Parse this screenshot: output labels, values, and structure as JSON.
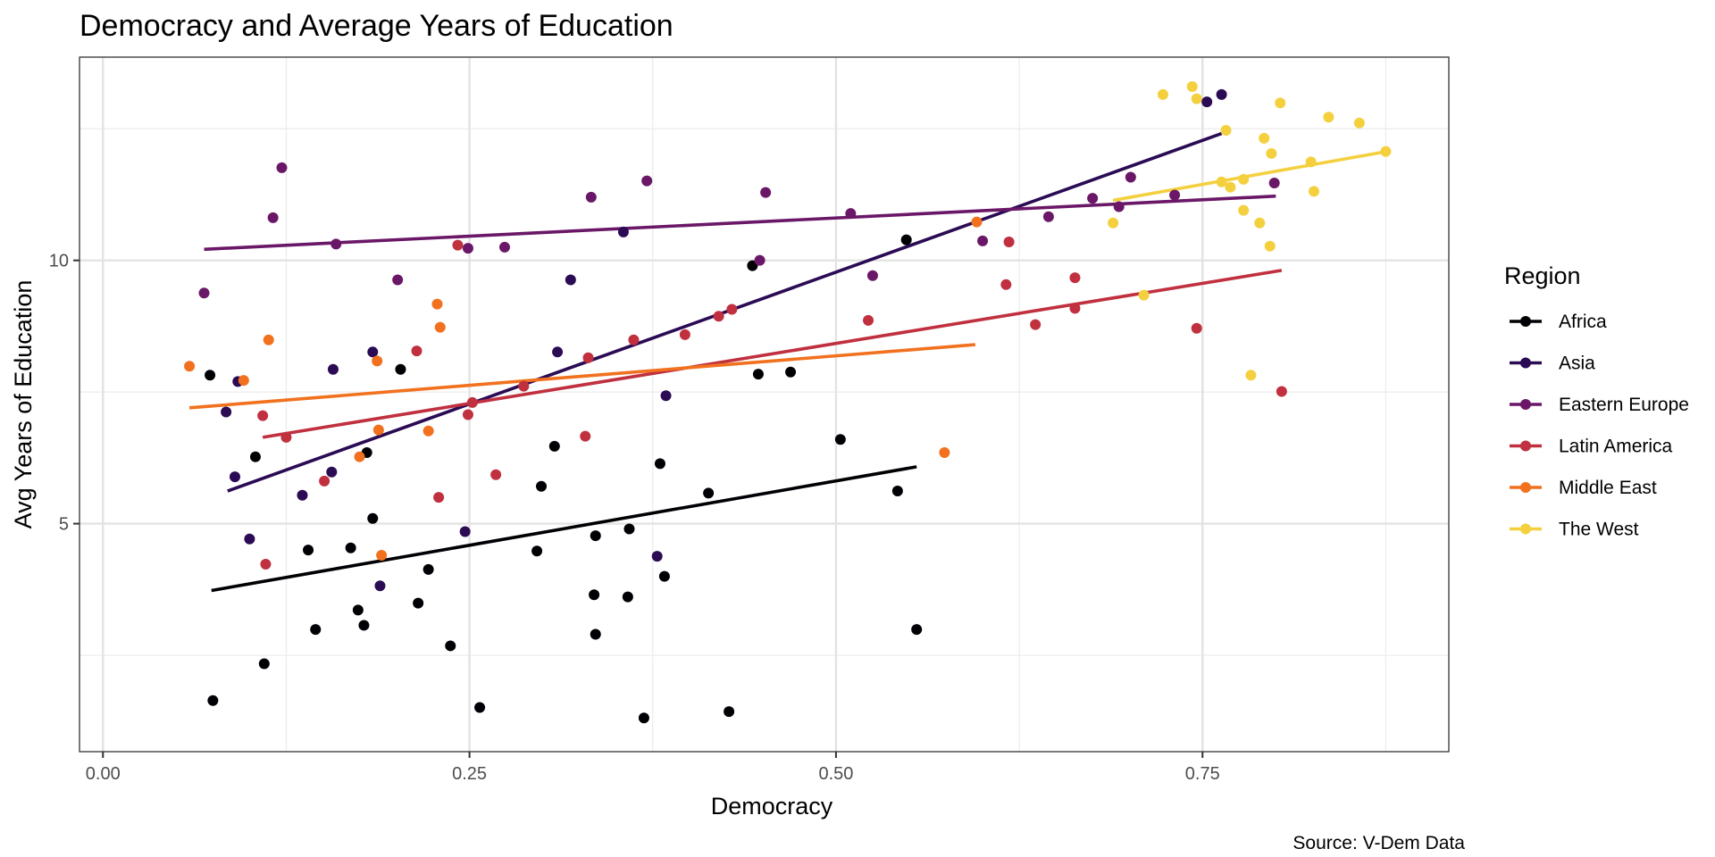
{
  "chart_data": {
    "type": "scatter",
    "title": "Democracy and Average Years of Education",
    "xlabel": "Democracy",
    "ylabel": "Avg Years of Education",
    "caption": "Source: V-Dem Data",
    "xlim": [
      -0.016,
      0.918
    ],
    "ylim": [
      0.67,
      13.86
    ],
    "x_ticks": [
      {
        "value": 0.0,
        "label": "0.00"
      },
      {
        "value": 0.25,
        "label": "0.25"
      },
      {
        "value": 0.5,
        "label": "0.50"
      },
      {
        "value": 0.75,
        "label": "0.75"
      }
    ],
    "x_minor": [
      0.125,
      0.375,
      0.625,
      0.875
    ],
    "y_ticks": [
      {
        "value": 5,
        "label": "5"
      },
      {
        "value": 10,
        "label": "10"
      }
    ],
    "y_minor": [
      2.5,
      7.5,
      12.5
    ],
    "grid": true,
    "legend": {
      "title": "Region",
      "position": "right"
    },
    "series": [
      {
        "name": "Africa",
        "color": "#000004",
        "points": [
          [
            0.073,
            7.82
          ],
          [
            0.075,
            1.64
          ],
          [
            0.104,
            6.27
          ],
          [
            0.11,
            2.34
          ],
          [
            0.14,
            4.5
          ],
          [
            0.145,
            2.99
          ],
          [
            0.169,
            4.54
          ],
          [
            0.174,
            3.36
          ],
          [
            0.178,
            3.07
          ],
          [
            0.18,
            6.35
          ],
          [
            0.184,
            5.1
          ],
          [
            0.203,
            7.93
          ],
          [
            0.215,
            3.49
          ],
          [
            0.222,
            4.13
          ],
          [
            0.237,
            2.68
          ],
          [
            0.257,
            1.51
          ],
          [
            0.296,
            4.48
          ],
          [
            0.299,
            5.71
          ],
          [
            0.308,
            6.47
          ],
          [
            0.335,
            3.65
          ],
          [
            0.336,
            2.9
          ],
          [
            0.336,
            4.77
          ],
          [
            0.358,
            3.61
          ],
          [
            0.359,
            4.9
          ],
          [
            0.369,
            1.31
          ],
          [
            0.38,
            6.14
          ],
          [
            0.383,
            4.0
          ],
          [
            0.413,
            5.58
          ],
          [
            0.427,
            1.43
          ],
          [
            0.443,
            9.9
          ],
          [
            0.447,
            7.84
          ],
          [
            0.469,
            7.88
          ],
          [
            0.503,
            6.6
          ],
          [
            0.542,
            5.62
          ],
          [
            0.548,
            10.39
          ],
          [
            0.555,
            2.99
          ]
        ],
        "trend": [
          [
            0.074,
            3.73
          ],
          [
            0.555,
            6.08
          ]
        ]
      },
      {
        "name": "Asia",
        "color": "#2a0b54",
        "points": [
          [
            0.084,
            7.12
          ],
          [
            0.09,
            5.89
          ],
          [
            0.092,
            7.7
          ],
          [
            0.1,
            4.71
          ],
          [
            0.136,
            5.54
          ],
          [
            0.156,
            5.98
          ],
          [
            0.157,
            7.93
          ],
          [
            0.184,
            8.26
          ],
          [
            0.189,
            3.82
          ],
          [
            0.247,
            4.85
          ],
          [
            0.31,
            8.26
          ],
          [
            0.319,
            9.63
          ],
          [
            0.355,
            10.54
          ],
          [
            0.378,
            4.38
          ],
          [
            0.384,
            7.43
          ],
          [
            0.753,
            13.01
          ],
          [
            0.763,
            13.15
          ]
        ],
        "trend": [
          [
            0.085,
            5.62
          ],
          [
            0.763,
            12.41
          ]
        ]
      },
      {
        "name": "Eastern Europe",
        "color": "#6a1767",
        "points": [
          [
            0.069,
            9.38
          ],
          [
            0.116,
            10.81
          ],
          [
            0.122,
            11.76
          ],
          [
            0.159,
            10.31
          ],
          [
            0.201,
            9.63
          ],
          [
            0.249,
            10.23
          ],
          [
            0.274,
            10.25
          ],
          [
            0.333,
            11.2
          ],
          [
            0.371,
            11.51
          ],
          [
            0.448,
            10.0
          ],
          [
            0.452,
            11.29
          ],
          [
            0.51,
            10.89
          ],
          [
            0.525,
            9.71
          ],
          [
            0.6,
            10.37
          ],
          [
            0.645,
            10.83
          ],
          [
            0.675,
            11.18
          ],
          [
            0.693,
            11.02
          ],
          [
            0.701,
            11.58
          ],
          [
            0.731,
            11.24
          ],
          [
            0.799,
            11.47
          ]
        ],
        "trend": [
          [
            0.069,
            10.21
          ],
          [
            0.8,
            11.22
          ]
        ]
      },
      {
        "name": "Latin America",
        "color": "#c0303f",
        "points": [
          [
            0.109,
            7.05
          ],
          [
            0.111,
            4.23
          ],
          [
            0.125,
            6.64
          ],
          [
            0.151,
            5.81
          ],
          [
            0.214,
            8.28
          ],
          [
            0.229,
            5.5
          ],
          [
            0.242,
            10.29
          ],
          [
            0.249,
            7.07
          ],
          [
            0.252,
            7.3
          ],
          [
            0.268,
            5.93
          ],
          [
            0.287,
            7.61
          ],
          [
            0.329,
            6.66
          ],
          [
            0.331,
            8.15
          ],
          [
            0.362,
            8.49
          ],
          [
            0.397,
            8.59
          ],
          [
            0.42,
            8.94
          ],
          [
            0.429,
            9.07
          ],
          [
            0.522,
            8.86
          ],
          [
            0.616,
            9.54
          ],
          [
            0.618,
            10.35
          ],
          [
            0.636,
            8.78
          ],
          [
            0.663,
            9.09
          ],
          [
            0.663,
            9.67
          ],
          [
            0.746,
            8.71
          ],
          [
            0.804,
            7.51
          ]
        ],
        "trend": [
          [
            0.109,
            6.64
          ],
          [
            0.804,
            9.81
          ]
        ]
      },
      {
        "name": "Middle East",
        "color": "#f1711f",
        "points": [
          [
            0.059,
            7.99
          ],
          [
            0.096,
            7.72
          ],
          [
            0.113,
            8.49
          ],
          [
            0.175,
            6.27
          ],
          [
            0.187,
            8.09
          ],
          [
            0.188,
            6.78
          ],
          [
            0.19,
            4.4
          ],
          [
            0.222,
            6.76
          ],
          [
            0.228,
            9.17
          ],
          [
            0.23,
            8.73
          ],
          [
            0.574,
            6.35
          ],
          [
            0.596,
            10.73
          ]
        ],
        "trend": [
          [
            0.059,
            7.2
          ],
          [
            0.595,
            8.4
          ]
        ]
      },
      {
        "name": "The West",
        "color": "#f4d03f",
        "points": [
          [
            0.689,
            10.71
          ],
          [
            0.71,
            9.34
          ],
          [
            0.723,
            13.15
          ],
          [
            0.743,
            13.3
          ],
          [
            0.746,
            13.07
          ],
          [
            0.763,
            11.49
          ],
          [
            0.766,
            12.47
          ],
          [
            0.769,
            11.39
          ],
          [
            0.778,
            11.54
          ],
          [
            0.778,
            10.95
          ],
          [
            0.783,
            7.82
          ],
          [
            0.789,
            10.71
          ],
          [
            0.792,
            12.32
          ],
          [
            0.796,
            10.27
          ],
          [
            0.797,
            12.03
          ],
          [
            0.803,
            12.99
          ],
          [
            0.824,
            11.87
          ],
          [
            0.826,
            11.31
          ],
          [
            0.836,
            12.72
          ],
          [
            0.857,
            12.61
          ],
          [
            0.875,
            12.07
          ]
        ],
        "trend": [
          [
            0.689,
            11.14
          ],
          [
            0.876,
            12.07
          ]
        ]
      }
    ]
  }
}
